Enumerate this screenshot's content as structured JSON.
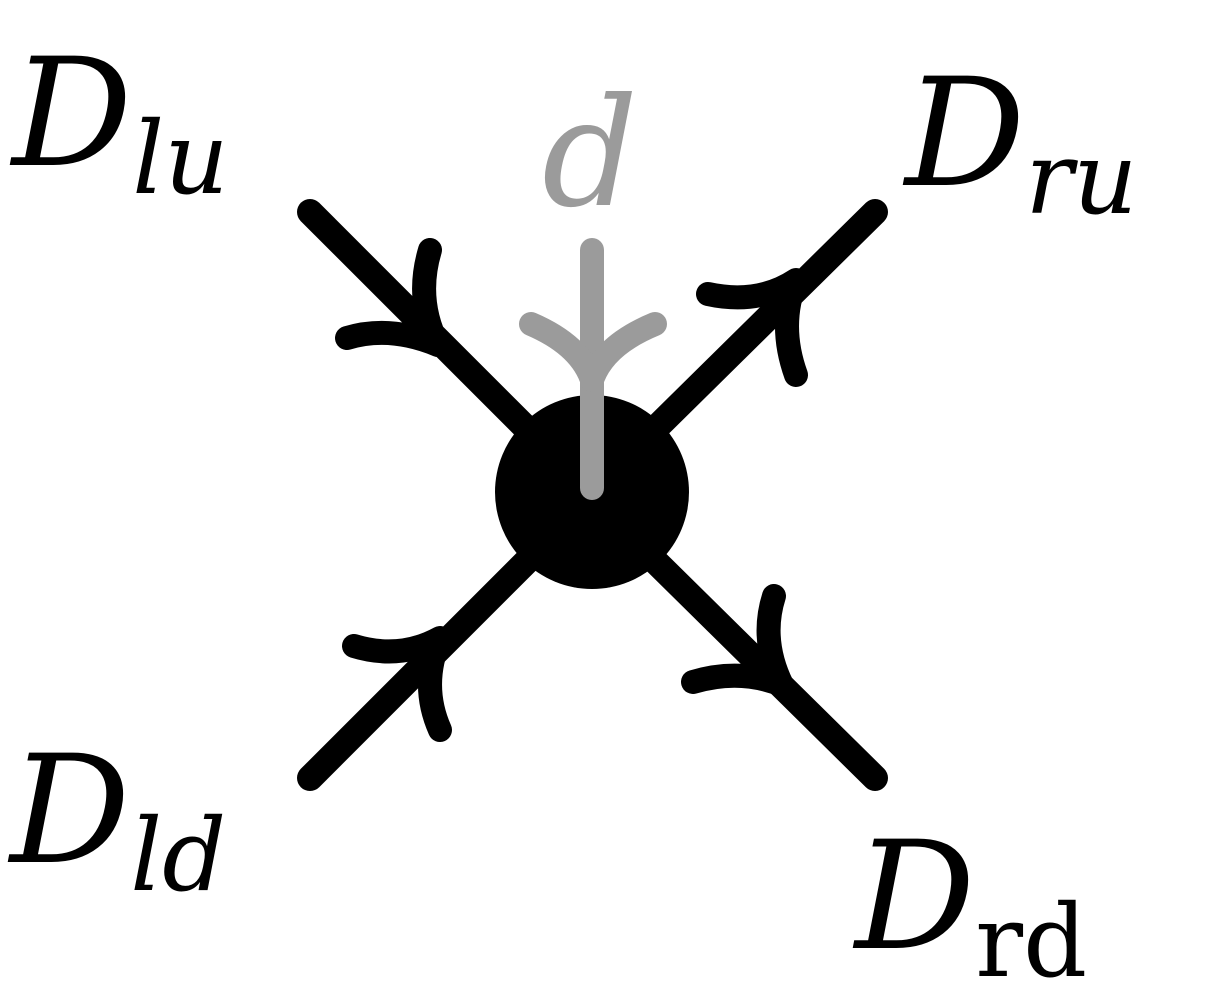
{
  "diagram": {
    "labels": {
      "lu": {
        "main": "D",
        "sub": "lu"
      },
      "ru": {
        "main": "D",
        "sub": "ru"
      },
      "ld": {
        "main": "D",
        "sub": "ld"
      },
      "rd": {
        "main": "D",
        "sub": "rd"
      },
      "d": "d"
    },
    "colors": {
      "edge": "#000000",
      "vertex": "#000000",
      "defect": "#9b9b9b"
    }
  }
}
